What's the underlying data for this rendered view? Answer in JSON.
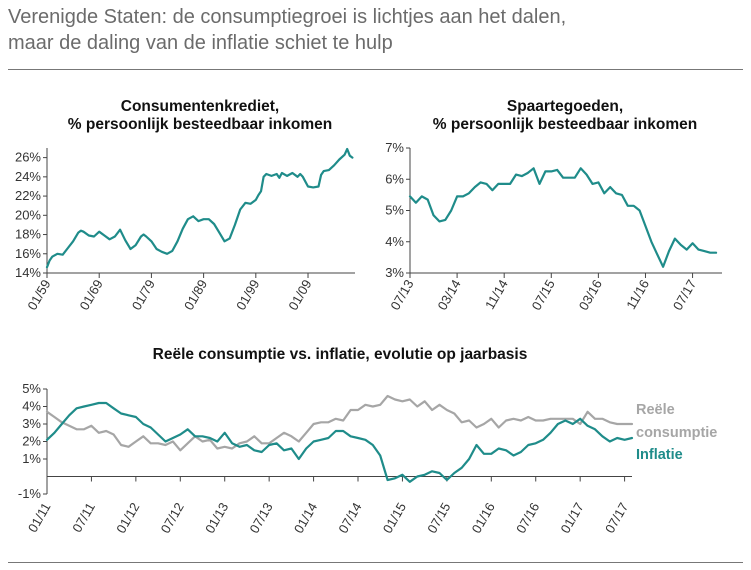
{
  "header": {
    "title_line1": "Verenigde Staten: de consumptiegroei is lichtjes aan het dalen,",
    "title_line2": "maar de daling van de inflatie schiet te hulp"
  },
  "colors": {
    "teal": "#1f8c8a",
    "gray": "#a6a6a6",
    "axis": "#444444"
  },
  "chart_data": [
    {
      "id": "credit",
      "type": "line",
      "title_line1": "Consumentenkrediet,",
      "title_line2": "% persoonlijk besteedbaar inkomen",
      "ylim": [
        14,
        27
      ],
      "yticks": [
        14,
        16,
        18,
        20,
        22,
        24,
        26
      ],
      "ytick_labels": [
        "14%",
        "16%",
        "18%",
        "20%",
        "22%",
        "24%",
        "26%"
      ],
      "xlim": [
        1959,
        2018
      ],
      "xticks": [
        1959,
        1969,
        1979,
        1989,
        1999,
        2009
      ],
      "xtick_labels": [
        "01/59",
        "01/69",
        "01/79",
        "01/89",
        "01/99",
        "01/09"
      ],
      "series": [
        {
          "name": "Consumentenkrediet",
          "color": "#1f8c8a",
          "x": [
            1959,
            1959.5,
            1960,
            1961,
            1962,
            1963,
            1964,
            1965,
            1965.5,
            1966,
            1967,
            1968,
            1969,
            1970,
            1971,
            1972,
            1973,
            1974,
            1975,
            1976,
            1977,
            1977.5,
            1978,
            1979,
            1979.5,
            1980,
            1981,
            1982,
            1983,
            1984,
            1985,
            1986,
            1987,
            1988,
            1989,
            1990,
            1991,
            1992,
            1993,
            1994,
            1995,
            1996,
            1997,
            1998,
            1999,
            1999.5,
            2000,
            2000.5,
            2001,
            2002,
            2003,
            2003.5,
            2004,
            2005,
            2006,
            2007,
            2007.5,
            2008,
            2009,
            2010,
            2011,
            2011.5,
            2012,
            2013,
            2014,
            2015,
            2016,
            2016.5,
            2017,
            2017.5
          ],
          "values": [
            14.6,
            15.3,
            15.7,
            16.0,
            15.9,
            16.6,
            17.3,
            18.2,
            18.4,
            18.3,
            17.9,
            17.8,
            18.3,
            17.9,
            17.5,
            17.8,
            18.5,
            17.4,
            16.5,
            16.9,
            17.8,
            18.0,
            17.8,
            17.3,
            16.9,
            16.5,
            16.2,
            16.0,
            16.3,
            17.3,
            18.6,
            19.6,
            19.9,
            19.4,
            19.6,
            19.6,
            19.1,
            18.2,
            17.3,
            17.6,
            19.0,
            20.6,
            21.3,
            21.2,
            21.6,
            22.1,
            22.5,
            24.0,
            24.3,
            24.1,
            24.3,
            23.9,
            24.4,
            24.1,
            24.4,
            24.0,
            24.3,
            24.0,
            23.0,
            22.9,
            23.0,
            24.2,
            24.6,
            24.7,
            25.2,
            25.8,
            26.3,
            26.9,
            26.2,
            26.0
          ]
        }
      ]
    },
    {
      "id": "savings",
      "type": "line",
      "title_line1": "Spaartegoeden,",
      "title_line2": "% persoonlijk besteedbaar inkomen",
      "ylim": [
        3,
        7
      ],
      "yticks": [
        3,
        4,
        5,
        6,
        7
      ],
      "ytick_labels": [
        "3%",
        "4%",
        "5%",
        "6%",
        "7%"
      ],
      "xlim": [
        0,
        53
      ],
      "xticks": [
        0,
        8,
        16,
        24,
        32,
        40,
        48
      ],
      "xtick_labels": [
        "07/13",
        "03/14",
        "11/14",
        "07/15",
        "03/16",
        "11/16",
        "07/17"
      ],
      "series": [
        {
          "name": "Spaartegoeden",
          "color": "#1f8c8a",
          "x": [
            0,
            1,
            2,
            3,
            4,
            5,
            6,
            7,
            8,
            9,
            10,
            11,
            12,
            13,
            14,
            15,
            16,
            17,
            18,
            19,
            20,
            21,
            22,
            23,
            24,
            25,
            26,
            27,
            28,
            29,
            30,
            31,
            32,
            33,
            34,
            35,
            36,
            37,
            38,
            39,
            40,
            41,
            42,
            43,
            44,
            45,
            46,
            47,
            48,
            49,
            50,
            51,
            52
          ],
          "values": [
            5.45,
            5.25,
            5.45,
            5.35,
            4.85,
            4.65,
            4.7,
            5.0,
            5.45,
            5.45,
            5.55,
            5.75,
            5.9,
            5.85,
            5.65,
            5.85,
            5.85,
            5.85,
            6.15,
            6.1,
            6.2,
            6.35,
            5.85,
            6.25,
            6.25,
            6.3,
            6.05,
            6.05,
            6.05,
            6.35,
            6.15,
            5.85,
            5.9,
            5.55,
            5.75,
            5.55,
            5.5,
            5.15,
            5.15,
            5.0,
            4.5,
            4.0,
            3.6,
            3.2,
            3.7,
            4.1,
            3.9,
            3.75,
            3.95,
            3.75,
            3.7,
            3.65,
            3.65
          ]
        }
      ]
    },
    {
      "id": "consumption_inflation",
      "type": "line",
      "title": "Reële consumptie vs. inflatie, evolutie op jaarbasis",
      "ylim": [
        -1,
        5
      ],
      "yticks": [
        -1,
        1,
        2,
        3,
        4,
        5
      ],
      "ytick_labels": [
        "-1%",
        "1%",
        "2%",
        "3%",
        "4%",
        "5%"
      ],
      "zero_line": 0,
      "xlim": [
        0,
        79
      ],
      "xticks": [
        0,
        6,
        12,
        18,
        24,
        30,
        36,
        42,
        48,
        54,
        60,
        66,
        72,
        78
      ],
      "xtick_labels": [
        "01/11",
        "07/11",
        "01/12",
        "07/12",
        "01/13",
        "07/13",
        "01/14",
        "07/14",
        "01/15",
        "07/15",
        "01/16",
        "07/16",
        "01/17",
        "07/17"
      ],
      "series": [
        {
          "name": "Reële consumptie",
          "label_line1": "Reële",
          "label_line2": "consumptie",
          "color": "#a6a6a6",
          "x": [
            0,
            1,
            2,
            3,
            4,
            5,
            6,
            7,
            8,
            9,
            10,
            11,
            12,
            13,
            14,
            15,
            16,
            17,
            18,
            19,
            20,
            21,
            22,
            23,
            24,
            25,
            26,
            27,
            28,
            29,
            30,
            31,
            32,
            33,
            34,
            35,
            36,
            37,
            38,
            39,
            40,
            41,
            42,
            43,
            44,
            45,
            46,
            47,
            48,
            49,
            50,
            51,
            52,
            53,
            54,
            55,
            56,
            57,
            58,
            59,
            60,
            61,
            62,
            63,
            64,
            65,
            66,
            67,
            68,
            69,
            70,
            71,
            72,
            73,
            74,
            75,
            76,
            77,
            78,
            79
          ],
          "values": [
            3.7,
            3.4,
            3.1,
            2.9,
            2.7,
            2.7,
            2.9,
            2.5,
            2.6,
            2.4,
            1.8,
            1.7,
            2.0,
            2.3,
            1.9,
            1.9,
            1.8,
            2.0,
            1.5,
            1.9,
            2.3,
            2.0,
            2.1,
            1.6,
            1.7,
            1.6,
            1.9,
            2.0,
            2.3,
            1.9,
            1.9,
            2.2,
            2.5,
            2.3,
            2.0,
            2.5,
            3.0,
            3.1,
            3.1,
            3.3,
            3.2,
            3.8,
            3.8,
            4.1,
            4.0,
            4.1,
            4.6,
            4.4,
            4.3,
            4.4,
            4.0,
            4.3,
            3.8,
            4.1,
            3.8,
            3.6,
            3.1,
            3.2,
            2.8,
            3.0,
            3.3,
            2.8,
            3.2,
            3.3,
            3.2,
            3.4,
            3.2,
            3.2,
            3.3,
            3.3,
            3.3,
            3.3,
            3.0,
            3.7,
            3.3,
            3.3,
            3.1,
            3.0,
            3.0,
            3.0
          ]
        },
        {
          "name": "Inflatie",
          "label": "Inflatie",
          "color": "#1f8c8a",
          "x": [
            0,
            1,
            2,
            3,
            4,
            5,
            6,
            7,
            8,
            9,
            10,
            11,
            12,
            13,
            14,
            15,
            16,
            17,
            18,
            19,
            20,
            21,
            22,
            23,
            24,
            25,
            26,
            27,
            28,
            29,
            30,
            31,
            32,
            33,
            34,
            35,
            36,
            37,
            38,
            39,
            40,
            41,
            42,
            43,
            44,
            45,
            46,
            47,
            48,
            49,
            50,
            51,
            52,
            53,
            54,
            55,
            56,
            57,
            58,
            59,
            60,
            61,
            62,
            63,
            64,
            65,
            66,
            67,
            68,
            69,
            70,
            71,
            72,
            73,
            74,
            75,
            76,
            77,
            78,
            79
          ],
          "values": [
            2.1,
            2.5,
            3.0,
            3.5,
            3.9,
            4.0,
            4.1,
            4.2,
            4.2,
            3.9,
            3.6,
            3.5,
            3.4,
            3.0,
            2.8,
            2.4,
            2.0,
            2.2,
            2.4,
            2.7,
            2.3,
            2.3,
            2.2,
            2.0,
            2.5,
            1.9,
            1.7,
            1.8,
            1.5,
            1.4,
            1.8,
            1.9,
            1.5,
            1.6,
            1.0,
            1.6,
            2.0,
            2.1,
            2.2,
            2.6,
            2.6,
            2.3,
            2.2,
            2.1,
            1.8,
            1.2,
            -0.2,
            -0.1,
            0.1,
            -0.3,
            0.0,
            0.1,
            0.3,
            0.2,
            -0.2,
            0.2,
            0.5,
            1.0,
            1.8,
            1.3,
            1.3,
            1.6,
            1.5,
            1.2,
            1.4,
            1.8,
            1.9,
            2.1,
            2.5,
            3.0,
            3.2,
            3.0,
            3.3,
            2.9,
            2.7,
            2.3,
            2.0,
            2.2,
            2.1,
            2.2
          ]
        }
      ]
    }
  ]
}
